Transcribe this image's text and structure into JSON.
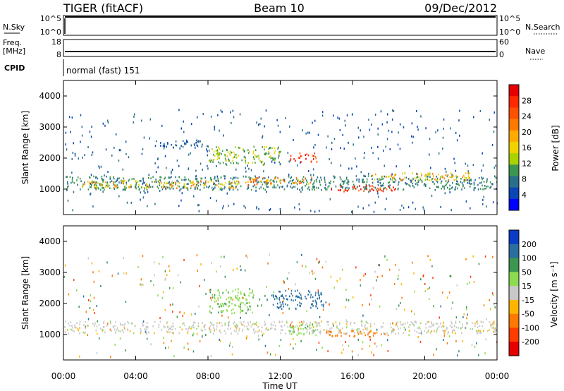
{
  "header": {
    "title": "TIGER (fitACF)",
    "beam": "Beam 10",
    "date": "09/Dec/2012"
  },
  "strips": {
    "nsky_label": "N.Sky",
    "nsky_ticks": [
      "10^5",
      "10^0"
    ],
    "nsearch_label": "N.Search",
    "nsearch_ticks": [
      "10^5",
      "10^0"
    ],
    "freq_label_1": "Freq.",
    "freq_label_2": "[MHz]",
    "freq_ticks": [
      "18",
      "8"
    ],
    "nave_label": "Nave",
    "nave_ticks": [
      "60",
      "0"
    ],
    "cpid_label": "CPID",
    "cpid_text": "normal (fast) 151"
  },
  "chart_data": [
    {
      "type": "heatmap",
      "title": "",
      "xlabel": "Time UT",
      "ylabel": "Slant Range [km]",
      "xlim": [
        "00:00",
        "24:00"
      ],
      "ylim": [
        180,
        4500
      ],
      "x_ticks": [
        "00:00",
        "04:00",
        "08:00",
        "12:00",
        "16:00",
        "20:00",
        "00:00"
      ],
      "y_ticks": [
        1000,
        2000,
        3000,
        4000
      ],
      "colorbar": {
        "label": "Power [dB]",
        "ticks": [
          "28",
          "24",
          "20",
          "16",
          "12",
          "8",
          "4"
        ],
        "levels": [
          {
            "min": 0,
            "color": "#0000ff"
          },
          {
            "min": 4,
            "color": "#0a46b4"
          },
          {
            "min": 8,
            "color": "#2a6e8c"
          },
          {
            "min": 12,
            "color": "#3c9650"
          },
          {
            "min": 16,
            "color": "#aad200"
          },
          {
            "min": 18,
            "color": "#f0d200"
          },
          {
            "min": 20,
            "color": "#ffaa00"
          },
          {
            "min": 22,
            "color": "#ff7800"
          },
          {
            "min": 24,
            "color": "#ff5000"
          },
          {
            "min": 26,
            "color": "#ff2800"
          },
          {
            "min": 28,
            "color": "#e60000"
          }
        ]
      },
      "regions": [
        {
          "t": [
            0.0,
            24.0
          ],
          "r": [
            1000,
            1450
          ],
          "value": 12,
          "note": "main band edges"
        },
        {
          "t": [
            1.0,
            10.0
          ],
          "r": [
            1050,
            1300
          ],
          "value": 20
        },
        {
          "t": [
            10.0,
            14.0
          ],
          "r": [
            1150,
            1400
          ],
          "value": 22
        },
        {
          "t": [
            14.5,
            18.5
          ],
          "r": [
            950,
            1150
          ],
          "value": 27
        },
        {
          "t": [
            17.0,
            22.5
          ],
          "r": [
            1300,
            1550
          ],
          "value": 20
        },
        {
          "t": [
            12.5,
            14.0
          ],
          "r": [
            1900,
            2200
          ],
          "value": 26
        },
        {
          "t": [
            8.0,
            12.0
          ],
          "r": [
            1800,
            2400
          ],
          "value": 16
        },
        {
          "t": [
            5.0,
            8.0
          ],
          "r": [
            2350,
            2600
          ],
          "value": 8
        }
      ]
    },
    {
      "type": "heatmap",
      "title": "",
      "xlabel": "Time UT",
      "ylabel": "Slant Range [km]",
      "xlim": [
        "00:00",
        "24:00"
      ],
      "ylim": [
        180,
        4500
      ],
      "x_ticks": [
        "00:00",
        "04:00",
        "08:00",
        "12:00",
        "16:00",
        "20:00",
        "00:00"
      ],
      "y_ticks": [
        1000,
        2000,
        3000,
        4000
      ],
      "colorbar": {
        "label": "Velocity [m s⁻¹]",
        "ticks": [
          "200",
          "100",
          "50",
          "15",
          "-15",
          "-50",
          "-100",
          "-200"
        ],
        "levels": [
          {
            "min": 200,
            "color": "#0a3cc8"
          },
          {
            "min": 100,
            "color": "#2a6ea0"
          },
          {
            "min": 50,
            "color": "#3c9650"
          },
          {
            "min": 15,
            "color": "#8cdc50"
          },
          {
            "min": -15,
            "color": "#c8c8c8"
          },
          {
            "min": -50,
            "color": "#ffb400"
          },
          {
            "min": -100,
            "color": "#ff7800"
          },
          {
            "min": -200,
            "color": "#ff3c00"
          },
          {
            "min": -9999,
            "color": "#e60000"
          }
        ]
      },
      "regions": [
        {
          "t": [
            0.0,
            24.0
          ],
          "r": [
            1050,
            1450
          ],
          "value": 0,
          "note": "ground scatter band"
        },
        {
          "t": [
            14.5,
            18.0
          ],
          "r": [
            950,
            1150
          ],
          "value": -80
        },
        {
          "t": [
            8.0,
            10.5
          ],
          "r": [
            1700,
            2500
          ],
          "value": 40
        },
        {
          "t": [
            11.5,
            14.5
          ],
          "r": [
            1850,
            2450
          ],
          "value": 150
        },
        {
          "t": [
            12.5,
            14.0
          ],
          "r": [
            1000,
            1350
          ],
          "value": 40
        }
      ]
    }
  ]
}
